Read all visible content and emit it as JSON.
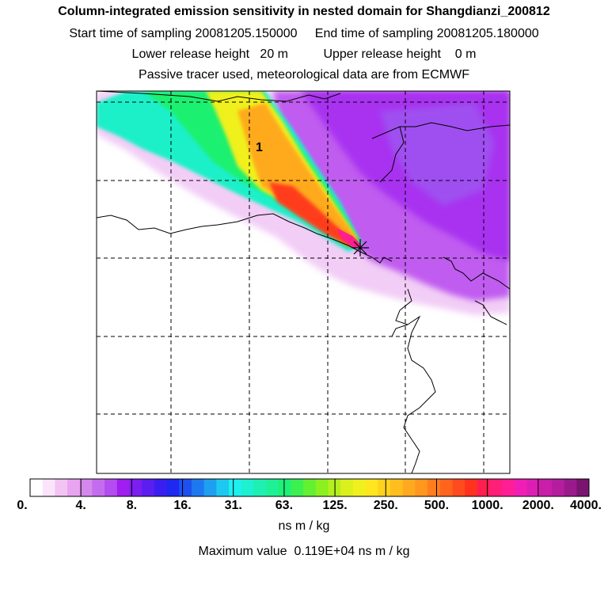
{
  "header": {
    "title": "Column-integrated emission sensitivity in nested domain for Shangdianzi_200812",
    "line2": "Start time of sampling 20081205.150000     End time of sampling 20081205.180000",
    "line3": "Lower release height   20 m          Upper release height    0 m",
    "line4": "Passive tracer used, meteorological data are from ECMWF"
  },
  "map": {
    "plume_label": "1",
    "receptor_marker": "star-icon"
  },
  "colorbar": {
    "labels": [
      "0.",
      "4.",
      "8.",
      "16.",
      "31.",
      "63.",
      "125.",
      "250.",
      "500.",
      "1000.",
      "2000.",
      "4000."
    ],
    "colors": [
      "#ffffff",
      "#fbe4fb",
      "#f3c4f3",
      "#e9a4f0",
      "#d488ec",
      "#c46cee",
      "#b44cf0",
      "#a01ef0",
      "#7c1ef0",
      "#5a1ef0",
      "#3a1ef0",
      "#1e28f0",
      "#1e50f0",
      "#1e78f0",
      "#1ea0f0",
      "#1ec8f0",
      "#1ef0f0",
      "#1ef0d2",
      "#1ef0b4",
      "#1ef096",
      "#1ef078",
      "#3cf050",
      "#64f032",
      "#8cf01e",
      "#b4f01e",
      "#dcf01e",
      "#f0f01e",
      "#ffe61e",
      "#ffd21e",
      "#ffbe1e",
      "#ffaa1e",
      "#ff961e",
      "#ff7d1e",
      "#ff641e",
      "#ff4b1e",
      "#ff321e",
      "#ff1e50",
      "#ff1e78",
      "#ff1e96",
      "#f01eb4",
      "#dc1eb4",
      "#c81eaa",
      "#b41e9e",
      "#9a1a8c",
      "#7a1470"
    ],
    "units": "ns m / kg",
    "max_value": "Maximum value  0.119E+04 ns m / kg"
  }
}
